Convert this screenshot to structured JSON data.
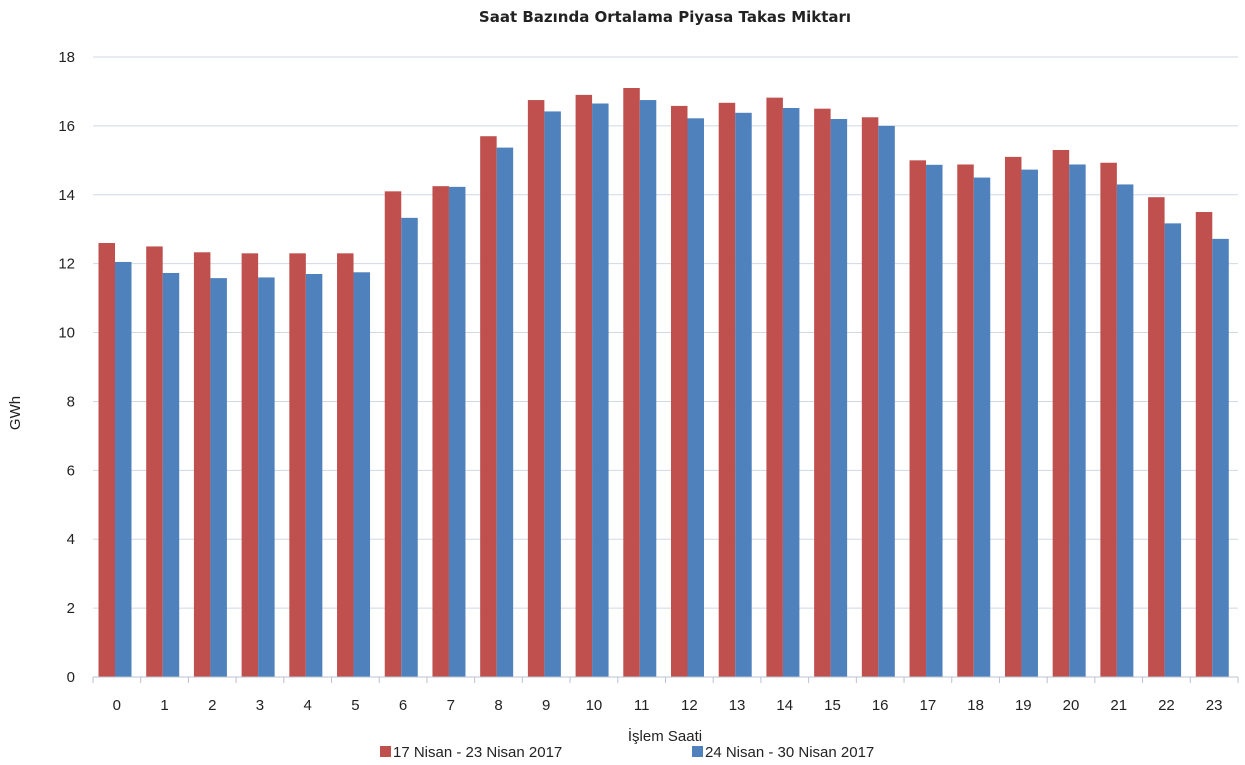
{
  "chart_data": {
    "type": "bar",
    "title": "Saat Bazında Ortalama Piyasa Takas Miktarı",
    "xlabel": "İşlem Saati",
    "ylabel": "GWh",
    "ylim": [
      0,
      18
    ],
    "yticks": [
      0,
      2,
      4,
      6,
      8,
      10,
      12,
      14,
      16,
      18
    ],
    "grid": true,
    "legend_position": "bottom",
    "categories": [
      "0",
      "1",
      "2",
      "3",
      "4",
      "5",
      "6",
      "7",
      "8",
      "9",
      "10",
      "11",
      "12",
      "13",
      "14",
      "15",
      "16",
      "17",
      "18",
      "19",
      "20",
      "21",
      "22",
      "23"
    ],
    "series": [
      {
        "name": "17 Nisan - 23 Nisan 2017",
        "color": "#c0504d",
        "values": [
          12.6,
          12.5,
          12.33,
          12.3,
          12.3,
          12.3,
          14.1,
          14.25,
          15.7,
          16.75,
          16.9,
          17.1,
          16.58,
          16.67,
          16.82,
          16.5,
          16.25,
          15.0,
          14.88,
          15.1,
          15.3,
          14.93,
          13.93,
          13.5
        ]
      },
      {
        "name": "24 Nisan - 30 Nisan 2017",
        "color": "#4f81bd",
        "values": [
          12.05,
          11.73,
          11.58,
          11.6,
          11.7,
          11.75,
          13.33,
          14.23,
          15.37,
          16.42,
          16.65,
          16.75,
          16.22,
          16.38,
          16.52,
          16.2,
          16.0,
          14.87,
          14.5,
          14.73,
          14.88,
          14.3,
          13.17,
          12.72
        ]
      }
    ]
  }
}
